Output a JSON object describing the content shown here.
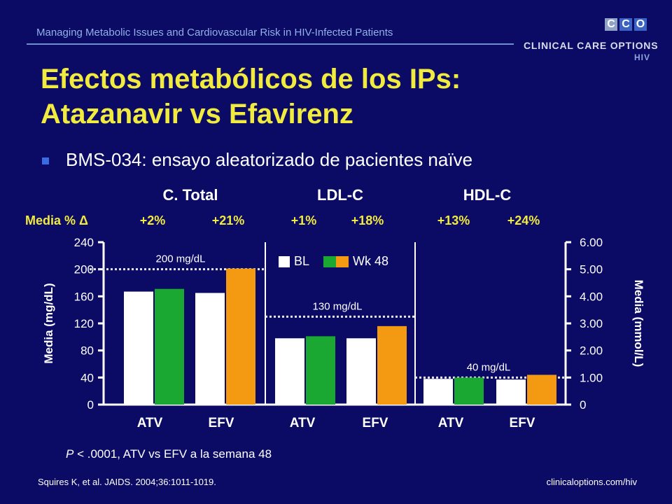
{
  "header": {
    "subtitle": "Managing Metabolic Issues and Cardiovascular Risk in HIV-Infected Patients",
    "logo_letters": [
      "C",
      "C",
      "O"
    ],
    "logo_name": "CLINICAL CARE OPTIONS",
    "logo_sub": "HIV"
  },
  "slide": {
    "title_line1": "Efectos metabólicos de los IPs:",
    "title_line2": "Atazanavir vs Efavirenz",
    "bullet": "BMS-034: ensayo aleatorizado de pacientes naïve",
    "media_pct_label": "Media % Δ",
    "pvalue_italic": "P",
    "pvalue_rest": " < .0001, ATV vs EFV a la semana 48",
    "footer_citation": "Squires K, et al. JAIDS. 2004;36:1011-1019.",
    "footer_url": "clinicaloptions.com/hiv"
  },
  "colors": {
    "background": "#0b0b66",
    "title": "#f1ea3f",
    "baseline_bar": "#ffffff",
    "atv_wk48": "#1aa832",
    "efv_wk48": "#f39a12"
  },
  "chart_data": {
    "type": "bar",
    "ylabel_left": "Media (mg/dL)",
    "ylabel_right": "Media (mmol/L)",
    "ylim_left": [
      0,
      240
    ],
    "yticks_left": [
      "0",
      "40",
      "80",
      "120",
      "160",
      "200",
      "240"
    ],
    "ylim_right": [
      0,
      6
    ],
    "yticks_right": [
      "0",
      "1.00",
      "2.00",
      "3.00",
      "4.00",
      "5.00",
      "6.00"
    ],
    "legend": [
      "BL",
      "Wk 48"
    ],
    "groups": [
      {
        "label": "C. Total",
        "reference_value": 200,
        "reference_label": "200 mg/dL",
        "pct_change": [
          "+2%",
          "+21%"
        ],
        "categories": [
          "ATV",
          "EFV"
        ],
        "series": [
          {
            "name": "BL",
            "values": [
              167,
              165
            ]
          },
          {
            "name": "Wk 48",
            "values": [
              171,
              201
            ]
          }
        ]
      },
      {
        "label": "LDL-C",
        "reference_value": 130,
        "reference_label": "130 mg/dL",
        "pct_change": [
          "+1%",
          "+18%"
        ],
        "categories": [
          "ATV",
          "EFV"
        ],
        "series": [
          {
            "name": "BL",
            "values": [
              98,
              98
            ]
          },
          {
            "name": "Wk 48",
            "values": [
              101,
              116
            ]
          }
        ]
      },
      {
        "label": "HDL-C",
        "reference_value": 40,
        "reference_label": "40 mg/dL",
        "pct_change": [
          "+13%",
          "+24%"
        ],
        "categories": [
          "ATV",
          "EFV"
        ],
        "series": [
          {
            "name": "BL",
            "values": [
              38,
              37
            ]
          },
          {
            "name": "Wk 48",
            "values": [
              40,
              44
            ]
          }
        ]
      }
    ]
  }
}
